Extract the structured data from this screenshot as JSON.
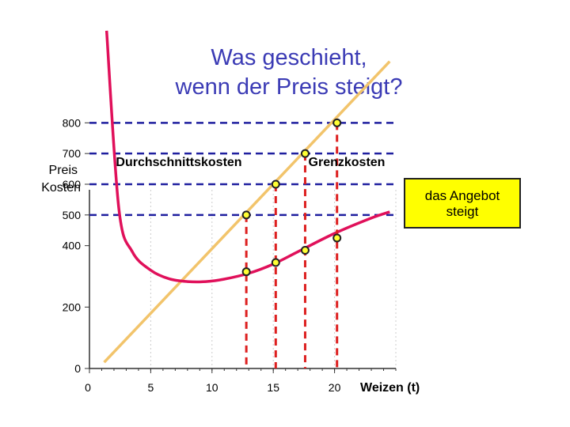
{
  "title": {
    "line1": "Was geschieht,",
    "line2": "wenn der Preis steigt?"
  },
  "callout": {
    "line1": "das Angebot",
    "line2": "steigt"
  },
  "colors": {
    "title": "#3b3bb5",
    "average_cost": "#e0105a",
    "marginal_cost": "#f2c46b",
    "price_lines": "#1f1f9f",
    "drop_lines": "#dd1f1f",
    "callout_bg": "#ffff00"
  },
  "chart_data": {
    "type": "line",
    "ylabel": [
      "Preis",
      "Kosten"
    ],
    "xlabel": "Weizen (t)",
    "xlim": [
      0,
      25
    ],
    "ylim": [
      0,
      1200
    ],
    "y_ticks": [
      0,
      200,
      400,
      500,
      600,
      700,
      800
    ],
    "x_ticks": [
      0,
      5,
      10,
      15,
      20
    ],
    "series": [
      {
        "name": "Durchschnittskosten",
        "values": [
          [
            1.4,
            1100
          ],
          [
            2.4,
            520
          ],
          [
            3.5,
            380
          ],
          [
            5,
            320
          ],
          [
            6.5,
            292
          ],
          [
            8,
            283
          ],
          [
            9.5,
            283
          ],
          [
            11,
            291
          ],
          [
            13,
            310
          ],
          [
            15,
            340
          ],
          [
            17,
            380
          ],
          [
            20,
            440
          ],
          [
            23,
            490
          ],
          [
            24.5,
            510
          ]
        ]
      },
      {
        "name": "Grenzkosten",
        "values": [
          [
            1.2,
            20
          ],
          [
            24.5,
            1000
          ]
        ]
      }
    ],
    "price_lines": [
      500,
      600,
      700,
      800
    ],
    "points": {
      "on_marginal_cost": [
        [
          12.8,
          500
        ],
        [
          15.2,
          600
        ],
        [
          17.6,
          700
        ],
        [
          20.2,
          800
        ]
      ],
      "on_average_cost": [
        [
          12.8,
          315
        ],
        [
          15.2,
          345
        ],
        [
          17.6,
          385
        ],
        [
          20.2,
          425
        ]
      ]
    }
  }
}
